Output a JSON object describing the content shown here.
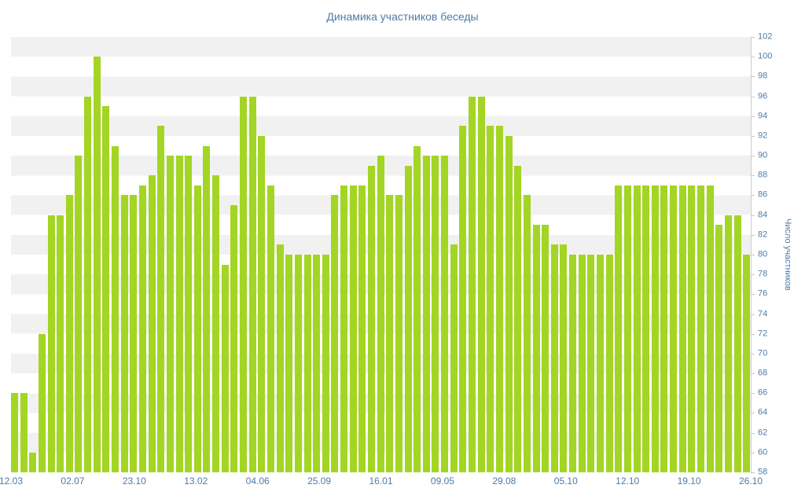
{
  "chart": {
    "title": "Динамика участников беседы",
    "ylabel": "Число участников"
  },
  "chart_data": {
    "type": "bar",
    "title": "Динамика участников беседы",
    "xlabel": "",
    "ylabel": "Число участников",
    "ylim": [
      58,
      102
    ],
    "grid": "horizontal-striped-bands",
    "legend_position": "none",
    "y_axis_side": "right",
    "y_ticks": [
      58,
      60,
      62,
      64,
      66,
      68,
      70,
      72,
      74,
      76,
      78,
      80,
      82,
      84,
      86,
      88,
      90,
      92,
      94,
      96,
      98,
      100,
      102
    ],
    "x_tick_labels": [
      "12.03",
      "02.07",
      "23.10",
      "13.02",
      "04.06",
      "25.09",
      "16.01",
      "09.05",
      "29.08",
      "05.10",
      "12.10",
      "19.10",
      "26.10"
    ],
    "values": [
      66,
      66,
      60,
      72,
      84,
      84,
      86,
      90,
      96,
      100,
      95,
      91,
      86,
      86,
      87,
      88,
      93,
      90,
      90,
      90,
      87,
      91,
      88,
      79,
      85,
      96,
      96,
      92,
      87,
      81,
      80,
      80,
      80,
      80,
      80,
      86,
      87,
      87,
      87,
      89,
      90,
      86,
      86,
      89,
      91,
      90,
      90,
      90,
      81,
      93,
      96,
      96,
      93,
      93,
      92,
      89,
      86,
      83,
      83,
      81,
      81,
      80,
      80,
      80,
      80,
      80,
      87,
      87,
      87,
      87,
      87,
      87,
      87,
      87,
      87,
      87,
      87,
      83,
      84,
      84,
      80
    ],
    "colors": {
      "bar": "#a3d524",
      "axis_text": "#4e7ba7",
      "stripe": "#f1f1f1",
      "background": "#ffffff",
      "tick_mark": "#c8c8c8"
    }
  }
}
